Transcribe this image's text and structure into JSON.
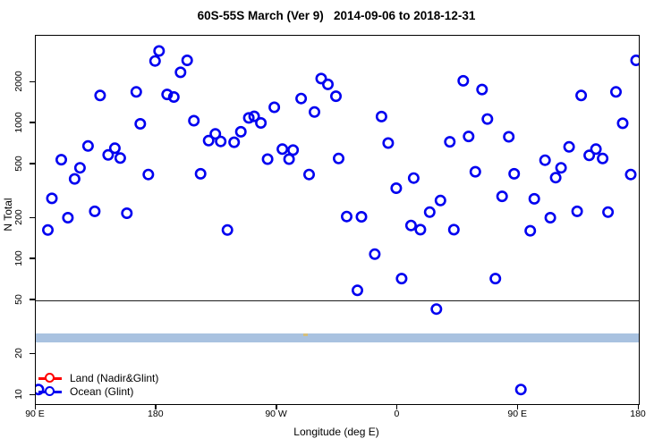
{
  "chart_data": {
    "type": "scatter",
    "title": "60S-55S March (Ver 9)   2014-09-06 to 2018-12-31",
    "xlabel": "Longitude (deg E)",
    "ylabel": "N Total",
    "x_axis": {
      "note": "axis spans 450 degrees of longitude starting at 90E heading east (wraps through 180, 90W, 0, back to 90E and 180)",
      "range_deg": [
        0,
        450
      ],
      "ticks_deg": [
        0,
        90,
        180,
        270,
        360,
        450
      ],
      "tick_labels": [
        "90 E",
        "180",
        "90 W",
        "0",
        "90 E",
        "180"
      ],
      "grid": false
    },
    "y_axis": {
      "scale": "log",
      "range": [
        8.6,
        4400
      ],
      "ticks": [
        10,
        20,
        50,
        100,
        200,
        500,
        1000,
        2000
      ],
      "tick_labels": [
        "10",
        "20",
        "50",
        "100",
        "200",
        "500",
        "1000",
        "2000"
      ],
      "grid": false
    },
    "reference_line_y": 50,
    "band": {
      "y_low": 24.5,
      "y_high": 28.5,
      "color": "#a9c2e0"
    },
    "anomaly_mark": {
      "x_deg": 201,
      "y": 28,
      "color": "#ddbe6a"
    },
    "point_style": {
      "shape": "open-circle",
      "radius_px": 5.2,
      "stroke_px": 2.6
    },
    "series": [
      {
        "name": "Land (Nadir&Glint)",
        "color": "#ff0000",
        "points": []
      },
      {
        "name": "Ocean (Glint)",
        "color": "#0000f0",
        "points": [
          [
            92,
            3400
          ],
          [
            89,
            2870
          ],
          [
            113,
            2900
          ],
          [
            108,
            2370
          ],
          [
            48,
            1600
          ],
          [
            75,
            1700
          ],
          [
            98,
            1630
          ],
          [
            103,
            1560
          ],
          [
            78,
            990
          ],
          [
            39,
            680
          ],
          [
            19,
            540
          ],
          [
            54,
            585
          ],
          [
            59,
            655
          ],
          [
            63,
            555
          ],
          [
            33,
            470
          ],
          [
            29,
            390
          ],
          [
            84,
            420
          ],
          [
            12,
            280
          ],
          [
            44,
            225
          ],
          [
            24,
            202
          ],
          [
            68,
            218
          ],
          [
            9,
            164
          ],
          [
            213,
            2130
          ],
          [
            218,
            1930
          ],
          [
            224,
            1580
          ],
          [
            198,
            1520
          ],
          [
            178,
            1310
          ],
          [
            208,
            1210
          ],
          [
            159,
            1095
          ],
          [
            163,
            1125
          ],
          [
            168,
            1005
          ],
          [
            118,
            1045
          ],
          [
            153,
            865
          ],
          [
            134,
            835
          ],
          [
            129,
            745
          ],
          [
            138,
            735
          ],
          [
            148,
            725
          ],
          [
            184,
            645
          ],
          [
            192,
            635
          ],
          [
            173,
            545
          ],
          [
            189,
            545
          ],
          [
            226,
            550
          ],
          [
            123,
            425
          ],
          [
            204,
            420
          ],
          [
            143,
            164
          ],
          [
            319,
            2050
          ],
          [
            333,
            1770
          ],
          [
            258,
            1120
          ],
          [
            337,
            1075
          ],
          [
            323,
            800
          ],
          [
            309,
            730
          ],
          [
            263,
            715
          ],
          [
            328,
            440
          ],
          [
            282,
            395
          ],
          [
            269,
            333
          ],
          [
            302,
            270
          ],
          [
            294,
            222
          ],
          [
            232,
            206
          ],
          [
            243,
            205
          ],
          [
            280,
            177
          ],
          [
            287,
            165
          ],
          [
            312,
            165
          ],
          [
            448,
            2900
          ],
          [
            407,
            1600
          ],
          [
            433,
            1700
          ],
          [
            438,
            1000
          ],
          [
            353,
            795
          ],
          [
            398,
            670
          ],
          [
            418,
            645
          ],
          [
            413,
            580
          ],
          [
            423,
            550
          ],
          [
            380,
            535
          ],
          [
            392,
            470
          ],
          [
            388,
            398
          ],
          [
            357,
            425
          ],
          [
            444,
            420
          ],
          [
            348,
            290
          ],
          [
            372,
            278
          ],
          [
            404,
            225
          ],
          [
            427,
            222
          ],
          [
            384,
            202
          ],
          [
            369,
            162
          ],
          [
            253,
            109
          ],
          [
            273,
            72
          ],
          [
            343,
            72
          ],
          [
            240,
            59
          ],
          [
            299,
            43
          ],
          [
            362,
            11
          ],
          [
            2,
            11
          ]
        ]
      }
    ],
    "legend_position": "bottom-left-inside"
  }
}
